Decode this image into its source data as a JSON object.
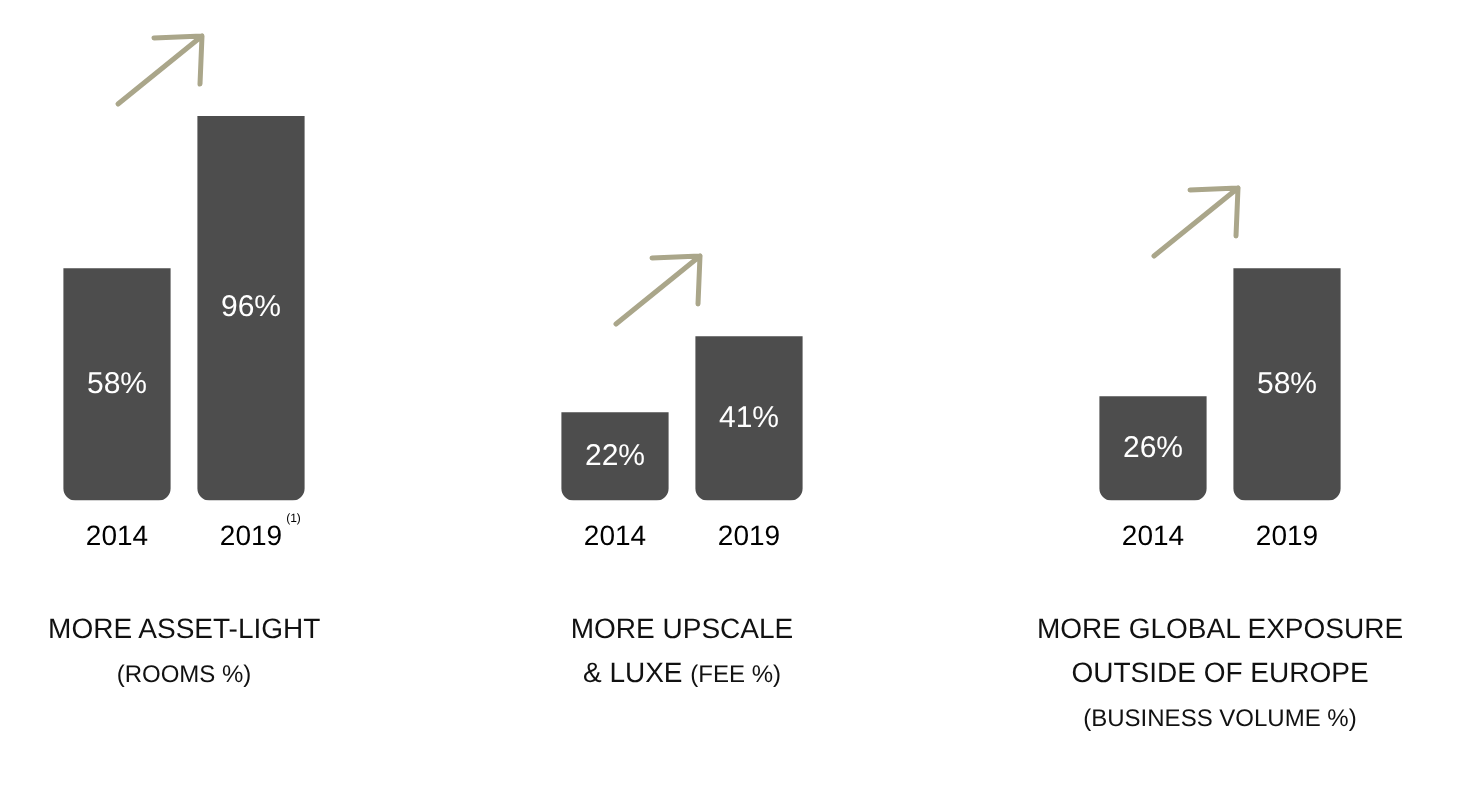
{
  "chart_data": [
    {
      "type": "bar",
      "title": "MORE ASSET-LIGHT",
      "subtitle": "(ROOMS %)",
      "categories": [
        "2014",
        "2019$^{(1)}$"
      ],
      "values": [
        58,
        96
      ],
      "color": "#4d4d4d",
      "value_labels": [
        "58%",
        "96%"
      ]
    },
    {
      "type": "bar",
      "title": "MORE UPSCALE\n& LUXE",
      "subtitle": "(FEE %)",
      "categories": [
        "2014",
        "2019"
      ],
      "values": [
        22,
        41
      ],
      "color": "#4d4d4d",
      "value_labels": [
        "22%",
        "41%"
      ]
    },
    {
      "type": "bar",
      "title": "MORE GLOBAL EXPOSURE\nOUTSIDE OF EUROPE",
      "subtitle": "(BUSINESS VOLUME %)",
      "categories": [
        "2014",
        "2019"
      ],
      "values": [
        26,
        58
      ],
      "color": "#4d4d4d",
      "value_labels": [
        "26%",
        "58%"
      ]
    }
  ]
}
